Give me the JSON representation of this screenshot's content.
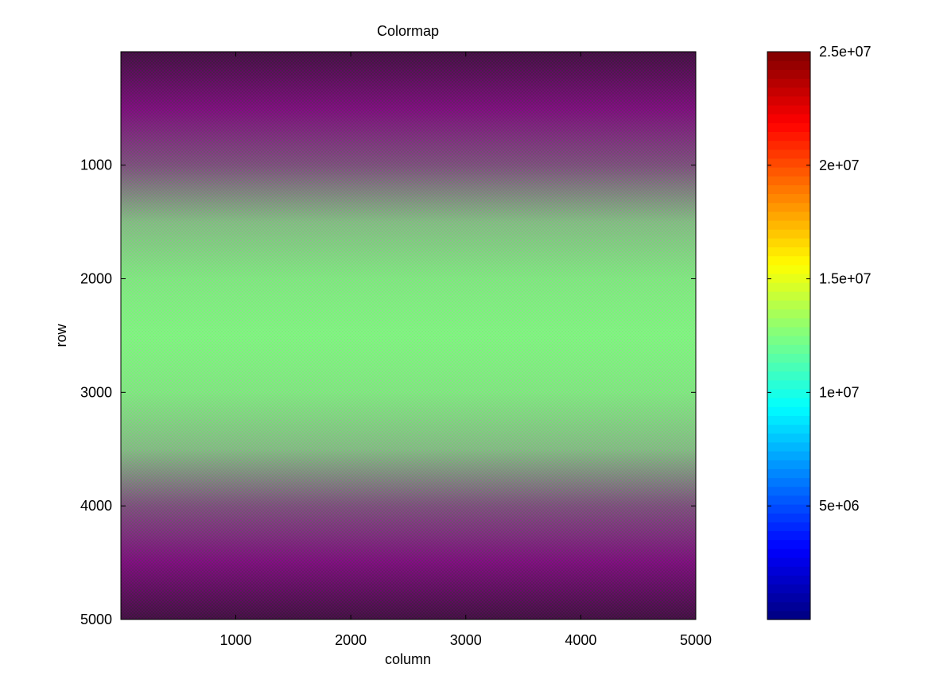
{
  "chart_data": {
    "type": "heatmap",
    "title": "Colormap",
    "xlabel": "column",
    "ylabel": "row",
    "xlim": [
      1,
      5000
    ],
    "ylim": [
      1,
      5000
    ],
    "y_reversed": true,
    "x_ticks": [
      1000,
      2000,
      3000,
      4000,
      5000
    ],
    "y_ticks": [
      1000,
      2000,
      3000,
      4000,
      5000
    ],
    "x_tick_labels": [
      "1000",
      "2000",
      "3000",
      "4000",
      "5000"
    ],
    "y_tick_labels": [
      "1000",
      "2000",
      "3000",
      "4000",
      "5000"
    ],
    "colorbar": {
      "colormap": "jet",
      "range": [
        0,
        25000000
      ],
      "ticks": [
        5000000,
        10000000,
        15000000,
        20000000,
        25000000
      ],
      "tick_labels": [
        "5e+06",
        "1e+07",
        "1.5e+07",
        "2e+07",
        "2.5e+07"
      ],
      "levels": 64
    },
    "pattern": "fine checkerboard alternating magenta and green; band colour green at row ~2500, dark purple near rows 1 and 5000",
    "row_profile": [
      {
        "row": 1,
        "color": "#3c0a3c"
      },
      {
        "row": 500,
        "color": "#780a78"
      },
      {
        "row": 1000,
        "color": "#7a4f7a"
      },
      {
        "row": 1500,
        "color": "#82c282"
      },
      {
        "row": 2000,
        "color": "#80f080"
      },
      {
        "row": 2500,
        "color": "#80ff80"
      },
      {
        "row": 3000,
        "color": "#80f080"
      },
      {
        "row": 3500,
        "color": "#82c282"
      },
      {
        "row": 4000,
        "color": "#7a4f7a"
      },
      {
        "row": 4500,
        "color": "#780a78"
      },
      {
        "row": 5000,
        "color": "#3c0a3c"
      }
    ]
  }
}
